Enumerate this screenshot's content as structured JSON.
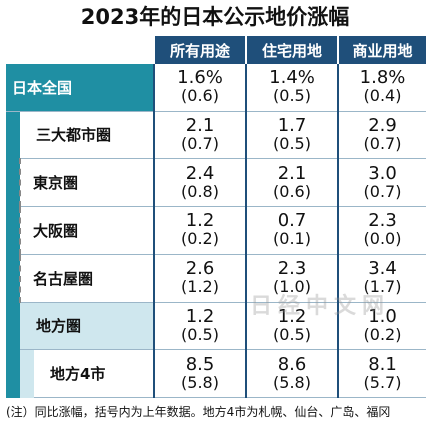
{
  "title": "2023年的日本公示地价涨幅",
  "columns": [
    "所有用途",
    "住宅用地",
    "商业用地"
  ],
  "rows": [
    {
      "label": "日本全国",
      "values": [
        "1.6%",
        "1.4%",
        "1.8%"
      ],
      "prev": [
        "(0.6)",
        "(0.5)",
        "(0.4)"
      ]
    },
    {
      "label": "三大都市圈",
      "values": [
        "2.1",
        "1.7",
        "2.9"
      ],
      "prev": [
        "(0.7)",
        "(0.5)",
        "(0.7)"
      ]
    },
    {
      "label": "東京圏",
      "values": [
        "2.4",
        "2.1",
        "3.0"
      ],
      "prev": [
        "(0.8)",
        "(0.6)",
        "(0.7)"
      ]
    },
    {
      "label": "大阪圏",
      "values": [
        "1.2",
        "0.7",
        "2.3"
      ],
      "prev": [
        "(0.2)",
        "(0.1)",
        "(0.0)"
      ]
    },
    {
      "label": "名古屋圏",
      "values": [
        "2.6",
        "2.3",
        "3.4"
      ],
      "prev": [
        "(1.2)",
        "(1.0)",
        "(1.7)"
      ]
    },
    {
      "label": "地方圏",
      "values": [
        "1.2",
        "1.2",
        "1.0"
      ],
      "prev": [
        "(0.5)",
        "(0.5)",
        "(0.2)"
      ]
    },
    {
      "label": "地方4市",
      "values": [
        "8.5",
        "8.6",
        "8.1"
      ],
      "prev": [
        "(5.8)",
        "(5.8)",
        "(5.7)"
      ]
    }
  ],
  "watermark": "日经中文网",
  "note": "(注）同比涨幅，括号内为上年数据。地方4市为札幌、仙台、广岛、福冈",
  "chart_data": {
    "type": "table",
    "title": "2023年的日本公示地价涨幅",
    "unit": "%",
    "columns": [
      "所有用途",
      "住宅用地",
      "商业用地"
    ],
    "categories": [
      "日本全国",
      "三大都市圈",
      "東京圏",
      "大阪圏",
      "名古屋圏",
      "地方圏",
      "地方4市"
    ],
    "series": [
      {
        "name": "所有用途",
        "values": [
          1.6,
          2.1,
          2.4,
          1.2,
          2.6,
          1.2,
          8.5
        ],
        "previous": [
          0.6,
          0.7,
          0.8,
          0.2,
          1.2,
          0.5,
          5.8
        ]
      },
      {
        "name": "住宅用地",
        "values": [
          1.4,
          1.7,
          2.1,
          0.7,
          2.3,
          1.2,
          8.6
        ],
        "previous": [
          0.5,
          0.5,
          0.6,
          0.1,
          1.0,
          0.5,
          5.8
        ]
      },
      {
        "name": "商业用地",
        "values": [
          1.8,
          2.9,
          3.0,
          2.3,
          3.4,
          1.0,
          8.1
        ],
        "previous": [
          0.4,
          0.7,
          0.7,
          0.0,
          1.7,
          0.2,
          5.7
        ]
      }
    ]
  },
  "colors": {
    "header": "#1f4f7a",
    "accent": "#1f8fa3",
    "light": "#cfe7ee"
  }
}
